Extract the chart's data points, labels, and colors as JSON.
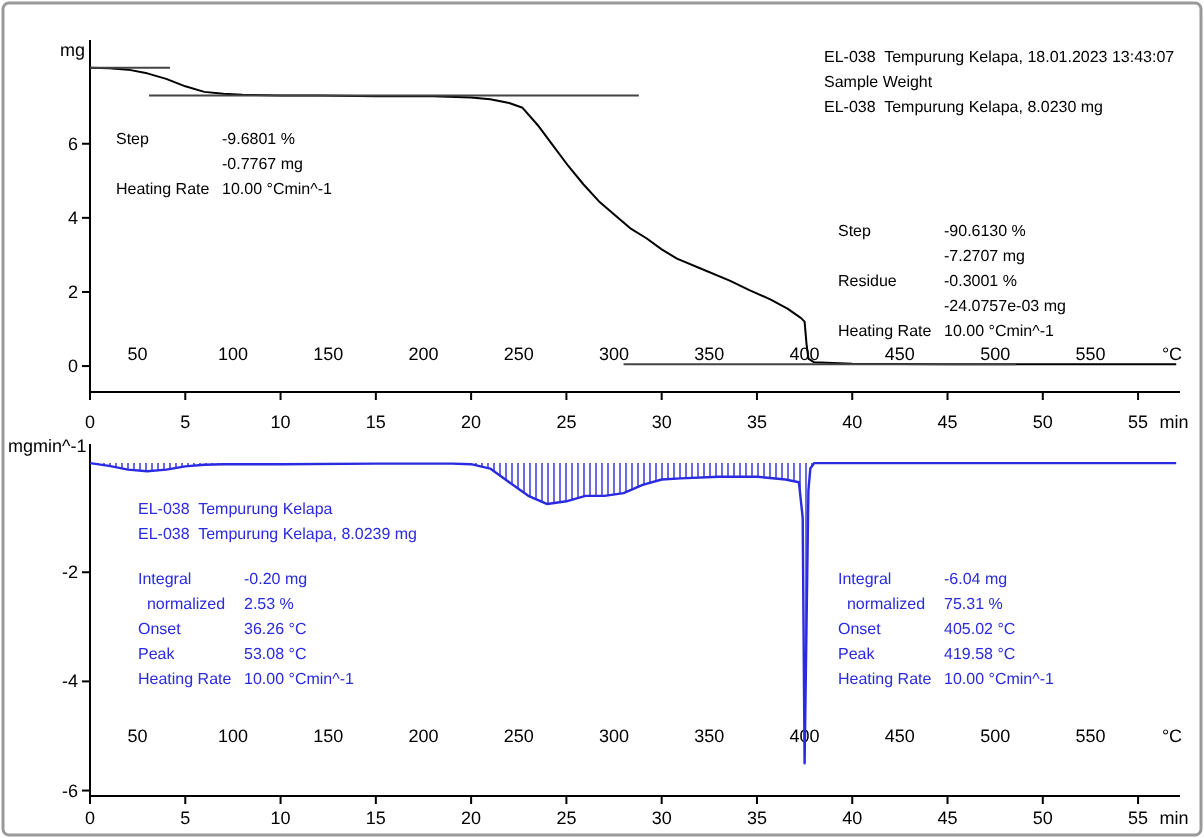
{
  "chart_data": [
    {
      "type": "line",
      "ylabel": "mg",
      "xlabel": "min",
      "x2label": "°C",
      "xlim": [
        0,
        57.2
      ],
      "xticks": [
        0,
        5,
        10,
        15,
        20,
        25,
        30,
        35,
        40,
        45,
        50,
        55
      ],
      "x2lim": [
        25,
        597
      ],
      "x2ticks": [
        50,
        100,
        150,
        200,
        250,
        300,
        350,
        400,
        450,
        500,
        550
      ],
      "ylim": [
        -0.7,
        8.8
      ],
      "yticks": [
        0,
        2,
        4,
        6
      ],
      "series": [
        {
          "color": "#000000",
          "x": [
            0,
            1,
            2,
            3,
            4,
            5,
            6,
            7,
            8,
            10,
            12,
            15,
            18,
            20,
            21,
            22,
            22.7,
            23.5,
            24.3,
            25.1,
            25.9,
            26.7,
            27.6,
            28.4,
            29.2,
            30,
            30.8,
            32.2,
            33.6,
            34.6,
            35.7,
            36.6,
            37.3,
            37.5,
            37.6,
            37.7,
            38,
            40,
            45,
            50,
            57
          ],
          "values": [
            8.05,
            8.04,
            8.0,
            7.9,
            7.75,
            7.55,
            7.4,
            7.35,
            7.32,
            7.3,
            7.3,
            7.28,
            7.28,
            7.25,
            7.2,
            7.1,
            6.97,
            6.5,
            5.95,
            5.4,
            4.9,
            4.45,
            4.05,
            3.7,
            3.45,
            3.15,
            2.9,
            2.6,
            2.3,
            2.05,
            1.8,
            1.55,
            1.3,
            1.2,
            0.6,
            0.2,
            0.1,
            0.06,
            0.05,
            0.05,
            0.05
          ]
        },
        {
          "color": "#444444",
          "x": [
            0,
            4.2
          ],
          "values": [
            8.05,
            8.05
          ]
        },
        {
          "color": "#444444",
          "x": [
            3.1,
            28.8
          ],
          "values": [
            7.3,
            7.3
          ]
        },
        {
          "color": "#444444",
          "x": [
            28,
            48.6
          ],
          "values": [
            0.05,
            0.05
          ]
        }
      ],
      "annotations": [
        "Step\t-9.6801 %\n\t-0.7767 mg\nHeating Rate\t10.00 °Cmin^-1",
        "EL-038  Tempurung Kelapa, 18.01.2023 13:43:07\nSample Weight\nEL-038  Tempurung Kelapa, 8.0230 mg",
        "Step\t-90.6130 %\n\t-7.2707 mg\nResidue\t-0.3001 %\n\t-24.0757e-03 mg\nHeating Rate\t10.00 °Cmin^-1"
      ]
    },
    {
      "type": "area",
      "ylabel": "mgmin^-1",
      "xlabel": "min",
      "x2label": "°C",
      "xlim": [
        0,
        57.2
      ],
      "xticks": [
        0,
        5,
        10,
        15,
        20,
        25,
        30,
        35,
        40,
        45,
        50,
        55
      ],
      "x2lim": [
        25,
        597
      ],
      "x2ticks": [
        50,
        100,
        150,
        200,
        250,
        300,
        350,
        400,
        450,
        500,
        550
      ],
      "ylim": [
        -6.1,
        0.35
      ],
      "yticks": [
        -2,
        -4,
        -6
      ],
      "series": [
        {
          "color": "#2a2ae0",
          "x": [
            0,
            1,
            2,
            3,
            4,
            5,
            6,
            7,
            10,
            15,
            19,
            20,
            21,
            22,
            23,
            24,
            25,
            26,
            27,
            28,
            29,
            30,
            31,
            33,
            35,
            36.5,
            37.2,
            37.4,
            37.5,
            37.6,
            37.7,
            37.8,
            38,
            40,
            45,
            50,
            57
          ],
          "values": [
            0,
            -0.05,
            -0.12,
            -0.15,
            -0.12,
            -0.06,
            -0.03,
            -0.02,
            -0.02,
            -0.01,
            -0.01,
            -0.02,
            -0.1,
            -0.35,
            -0.6,
            -0.75,
            -0.7,
            -0.6,
            -0.6,
            -0.55,
            -0.4,
            -0.3,
            -0.28,
            -0.25,
            -0.25,
            -0.3,
            -0.35,
            -1.0,
            -5.5,
            -3.0,
            -0.5,
            -0.1,
            0,
            0,
            0,
            0,
            0
          ]
        }
      ],
      "annotations": [
        "EL-038  Tempurung Kelapa\nEL-038  Tempurung Kelapa, 8.0239 mg",
        "Integral\t-0.20 mg\n  normalized\t2.53 %\nOnset\t36.26 °C\nPeak\t53.08 °C\nHeating Rate\t10.00 °Cmin^-1",
        "Integral\t-6.04 mg\n  normalized\t75.31 %\nOnset\t405.02 °C\nPeak\t419.58 °C\nHeating Rate\t10.00 °Cmin^-1"
      ]
    }
  ]
}
